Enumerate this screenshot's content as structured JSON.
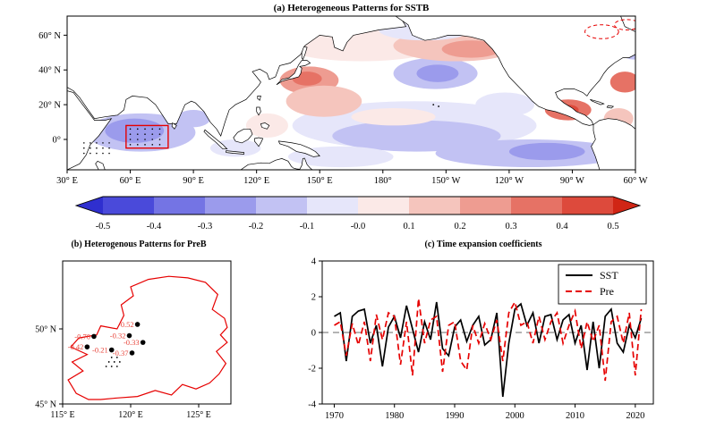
{
  "panel_a": {
    "title": "(a) Heterogeneous Patterns for SSTB",
    "x_tick_labels": [
      "30° E",
      "60° E",
      "90° E",
      "120° E",
      "150° E",
      "180°",
      "150° W",
      "120° W",
      "90° W",
      "60° W"
    ],
    "x_tick_lons": [
      30,
      60,
      90,
      120,
      150,
      180,
      210,
      240,
      270,
      300
    ],
    "y_tick_labels": [
      "60° N",
      "40° N",
      "20° N",
      "0°"
    ],
    "y_tick_lats": [
      60,
      40,
      20,
      0
    ],
    "box_color": "#e60000",
    "dashed_contours": [
      {
        "lon": 284,
        "lat": 62,
        "rx": 8,
        "ry": 4
      },
      {
        "lon": 296,
        "lat": 66,
        "rx": 6,
        "ry": 3
      }
    ]
  },
  "colorbar": {
    "tick_labels": [
      "-0.5",
      "-0.4",
      "-0.3",
      "-0.2",
      "-0.1",
      "-0.0",
      "0.1",
      "0.2",
      "0.3",
      "0.4",
      "0.5"
    ],
    "segment_colors": [
      "#4a4ada",
      "#7474e4",
      "#9b9bec",
      "#c2c2f3",
      "#e6e6fa",
      "#fbe9e7",
      "#f5c5bd",
      "#ee9c91",
      "#e67265",
      "#dd4a3c"
    ],
    "left_arrow_color": "#2f2fcf",
    "right_arrow_color": "#d02515"
  },
  "panel_b": {
    "title": "(b) Heterogenous Patterns for PreB",
    "x_tick_labels": [
      "115° E",
      "120° E",
      "125° E"
    ],
    "x_tick_lons": [
      115,
      120,
      125
    ],
    "y_tick_labels": [
      "50° N",
      "45° N"
    ],
    "y_tick_lats": [
      50,
      45
    ],
    "outline_color": "#e60000",
    "label_color": "#e8463c",
    "outline": [
      [
        116.0,
        45.7
      ],
      [
        115.4,
        46.6
      ],
      [
        116.5,
        47.2
      ],
      [
        115.7,
        47.8
      ],
      [
        116.8,
        48.3
      ],
      [
        115.6,
        48.8
      ],
      [
        116.2,
        49.4
      ],
      [
        117.5,
        49.6
      ],
      [
        117.8,
        50.2
      ],
      [
        119.0,
        50.0
      ],
      [
        119.5,
        50.9
      ],
      [
        119.3,
        51.6
      ],
      [
        120.2,
        52.2
      ],
      [
        120.0,
        52.8
      ],
      [
        121.3,
        53.3
      ],
      [
        122.8,
        53.5
      ],
      [
        124.2,
        53.4
      ],
      [
        125.5,
        53.1
      ],
      [
        126.4,
        52.3
      ],
      [
        126.0,
        51.3
      ],
      [
        126.9,
        50.7
      ],
      [
        127.1,
        50.1
      ],
      [
        126.6,
        49.6
      ],
      [
        127.1,
        49.1
      ],
      [
        126.3,
        48.5
      ],
      [
        127.0,
        47.7
      ],
      [
        126.5,
        47.0
      ],
      [
        125.8,
        46.4
      ],
      [
        124.8,
        46.0
      ],
      [
        123.8,
        46.3
      ],
      [
        123.0,
        45.6
      ],
      [
        121.8,
        45.9
      ],
      [
        120.5,
        45.5
      ],
      [
        119.0,
        45.4
      ],
      [
        117.8,
        45.3
      ],
      [
        116.9,
        45.3
      ]
    ],
    "stipple_dots": [
      [
        118.2,
        47.5
      ],
      [
        118.6,
        47.5
      ],
      [
        119.0,
        47.5
      ],
      [
        118.4,
        47.8
      ],
      [
        118.8,
        47.8
      ],
      [
        119.2,
        47.8
      ],
      [
        118.6,
        48.1
      ],
      [
        119.0,
        48.1
      ]
    ]
  },
  "panel_c": {
    "title": "(c) Time expansion coefficients",
    "x_tick_labels": [
      "1970",
      "1980",
      "1990",
      "2000",
      "2010",
      "2020"
    ],
    "x_tick_years": [
      1970,
      1980,
      1990,
      2000,
      2010,
      2020
    ],
    "y_tick_labels": [
      "-4",
      "-2",
      "0",
      "2",
      "4"
    ],
    "y_tick_values": [
      -4,
      -2,
      0,
      2,
      4
    ],
    "zero_line_color": "#888888",
    "legend": [
      {
        "label": "SST",
        "color": "#000000",
        "style": "solid"
      },
      {
        "label": "Pre",
        "color": "#e60000",
        "style": "dashed"
      }
    ]
  },
  "chart_data": [
    {
      "id": "a",
      "type": "heatmap",
      "title": "(a) Heterogeneous Patterns for SSTB",
      "projection": "lon 30E-60W, lat ~17.5S-71N",
      "value_range": [
        -0.5,
        0.5
      ],
      "colorbar_ticks": [
        -0.5,
        -0.4,
        -0.3,
        -0.2,
        -0.1,
        -0.0,
        0.1,
        0.2,
        0.3,
        0.4,
        0.5
      ],
      "highlight_box": {
        "lon": [
          58,
          78
        ],
        "lat": [
          -5,
          8
        ]
      },
      "regions": [
        {
          "lon": 195,
          "lat": 8,
          "rx": 58,
          "ry": 14,
          "level": 4
        },
        {
          "lon": 196,
          "lat": 2,
          "rx": 40,
          "ry": 9,
          "level": 3
        },
        {
          "lon": 250,
          "lat": -8,
          "rx": 45,
          "ry": 8,
          "level": 3
        },
        {
          "lon": 258,
          "lat": -7,
          "rx": 18,
          "ry": 5,
          "level": 2
        },
        {
          "lon": 65,
          "lat": 4,
          "rx": 26,
          "ry": 11,
          "level": 3
        },
        {
          "lon": 62,
          "lat": 5,
          "rx": 14,
          "ry": 7,
          "level": 2
        },
        {
          "lon": 205,
          "lat": 38,
          "rx": 20,
          "ry": 9,
          "level": 3
        },
        {
          "lon": 206,
          "lat": 38,
          "rx": 10,
          "ry": 5,
          "level": 2
        },
        {
          "lon": 238,
          "lat": 20,
          "rx": 14,
          "ry": 7,
          "level": 4
        },
        {
          "lon": 170,
          "lat": 56,
          "rx": 40,
          "ry": 11,
          "level": 5
        },
        {
          "lon": 215,
          "lat": 54,
          "rx": 30,
          "ry": 9,
          "level": 6
        },
        {
          "lon": 222,
          "lat": 52,
          "rx": 14,
          "ry": 5,
          "level": 7
        },
        {
          "lon": 145,
          "lat": 34,
          "rx": 14,
          "ry": 8,
          "level": 7
        },
        {
          "lon": 144,
          "lat": 35,
          "rx": 7,
          "ry": 4,
          "level": 8
        },
        {
          "lon": 152,
          "lat": 22,
          "rx": 18,
          "ry": 9,
          "level": 6
        },
        {
          "lon": 268,
          "lat": 17,
          "rx": 11,
          "ry": 6,
          "level": 8
        },
        {
          "lon": 268,
          "lat": 17,
          "rx": 5,
          "ry": 3,
          "level": 9
        },
        {
          "lon": 295,
          "lat": 33,
          "rx": 7,
          "ry": 6,
          "level": 8
        },
        {
          "lon": 292,
          "lat": 12,
          "rx": 7,
          "ry": 6,
          "level": 6
        },
        {
          "lon": 185,
          "lat": 13,
          "rx": 20,
          "ry": 5,
          "level": 5
        },
        {
          "lon": 125,
          "lat": 8,
          "rx": 10,
          "ry": 7,
          "level": 5
        },
        {
          "lon": 200,
          "lat": 63,
          "rx": 22,
          "ry": 6,
          "level": 4
        },
        {
          "lon": 299,
          "lat": 55,
          "rx": 8,
          "ry": 9,
          "level": 3
        },
        {
          "lon": 90,
          "lat": 12,
          "rx": 8,
          "ry": 5,
          "level": 3
        },
        {
          "lon": 110,
          "lat": -5,
          "rx": 12,
          "ry": 5,
          "level": 4
        },
        {
          "lon": 160,
          "lat": -10,
          "rx": 25,
          "ry": 6,
          "level": 4
        },
        {
          "lon": 135,
          "lat": 55,
          "rx": 12,
          "ry": 6,
          "level": 5
        }
      ]
    },
    {
      "id": "b",
      "type": "scatter",
      "title": "(b) Heterogenous Patterns for PreB",
      "points": [
        {
          "label": "-0.52",
          "lon": 120.5,
          "lat": 50.3
        },
        {
          "label": "-0.70",
          "lon": 117.3,
          "lat": 49.5
        },
        {
          "label": "-0.32",
          "lon": 119.9,
          "lat": 49.55
        },
        {
          "label": "-0.33",
          "lon": 120.9,
          "lat": 49.1
        },
        {
          "label": "-0.42",
          "lon": 116.8,
          "lat": 48.8
        },
        {
          "label": "-0.21",
          "lon": 118.6,
          "lat": 48.6
        },
        {
          "label": "-0.37",
          "lon": 120.1,
          "lat": 48.4
        }
      ]
    },
    {
      "id": "c",
      "type": "line",
      "title": "(c) Time expansion coefficients",
      "ylim": [
        -4,
        4
      ],
      "legend_position": "upper right",
      "x": [
        1970,
        1971,
        1972,
        1973,
        1974,
        1975,
        1976,
        1977,
        1978,
        1979,
        1980,
        1981,
        1982,
        1983,
        1984,
        1985,
        1986,
        1987,
        1988,
        1989,
        1990,
        1991,
        1992,
        1993,
        1994,
        1995,
        1996,
        1997,
        1998,
        1999,
        2000,
        2001,
        2002,
        2003,
        2004,
        2005,
        2006,
        2007,
        2008,
        2009,
        2010,
        2011,
        2012,
        2013,
        2014,
        2015,
        2016,
        2017,
        2018,
        2019,
        2020,
        2021
      ],
      "series": [
        {
          "name": "SST",
          "values": [
            0.9,
            1.1,
            -1.6,
            0.9,
            1.2,
            1.3,
            -0.6,
            0.4,
            -1.9,
            0.3,
            0.9,
            -0.3,
            1.5,
            0.2,
            -1.1,
            0.6,
            -0.4,
            1.7,
            -0.9,
            -1.3,
            0.3,
            0.7,
            -0.5,
            0.4,
            0.9,
            -0.7,
            -0.4,
            1.1,
            -3.6,
            -0.6,
            1.3,
            1.6,
            0.4,
            1.1,
            -0.6,
            0.9,
            1.0,
            -0.4,
            0.7,
            1.0,
            -0.6,
            0.4,
            -2.1,
            0.6,
            -2.0,
            0.9,
            1.3,
            -0.6,
            -1.1,
            0.4,
            -0.3,
            0.8
          ]
        },
        {
          "name": "Pre",
          "values": [
            0.4,
            0.6,
            -1.3,
            0.5,
            -0.7,
            0.6,
            -1.6,
            1.0,
            -0.4,
            1.1,
            0.9,
            -1.8,
            0.6,
            -2.4,
            1.9,
            -0.6,
            0.7,
            0.9,
            -2.2,
            0.4,
            0.6,
            -1.6,
            -2.1,
            0.4,
            -0.6,
            0.5,
            -0.4,
            0.7,
            -1.6,
            1.1,
            1.7,
            0.4,
            0.6,
            -0.6,
            0.9,
            -0.4,
            0.6,
            1.1,
            -0.6,
            0.4,
            1.2,
            -0.9,
            0.6,
            -0.5,
            0.4,
            -2.7,
            0.6,
            0.9,
            -0.6,
            1.1,
            -2.4,
            1.3
          ]
        }
      ]
    }
  ]
}
